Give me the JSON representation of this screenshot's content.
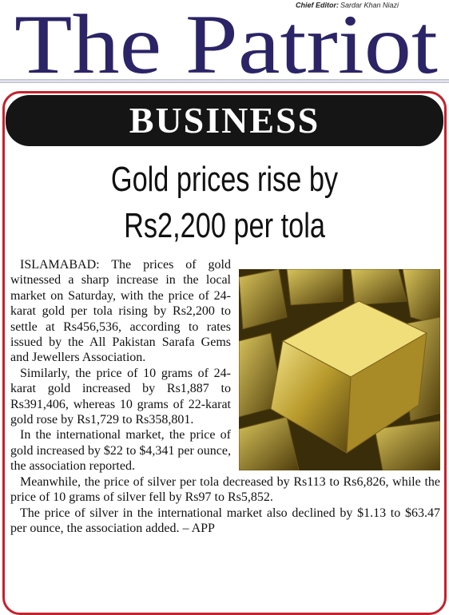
{
  "masthead": {
    "title": "The Patriot",
    "editor_label": "Chief Editor:",
    "editor_name": "Sardar Khan Niazi"
  },
  "section": "BUSINESS",
  "article": {
    "headline": [
      "Gold prices rise by",
      "Rs2,200 per tola"
    ],
    "paragraphs": [
      "ISLAMABAD: The prices of gold witnessed a sharp increase in the local market on Saturday, with the price of 24-karat gold per tola rising by Rs2,200 to settle at Rs456,536, according to rates issued by the All Pakistan Sarafa Gems and Jewellers Association.",
      "Similarly, the price of 10 grams of 24-karat gold increased by Rs1,887 to Rs391,406, whereas 10 grams of 22-karat gold rose by Rs1,729 to Rs358,801.",
      "In the international market, the price of gold increased by $22 to $4,341 per ounce, the association reported.",
      "Meanwhile, the price of silver per tola decreased by Rs113 to Rs6,826, while the price of 10 grams of silver fell by Rs97 to Rs5,852.",
      "The price of silver in the international market also declined by $1.13 to $63.47 per ounce, the association added. – APP"
    ]
  }
}
